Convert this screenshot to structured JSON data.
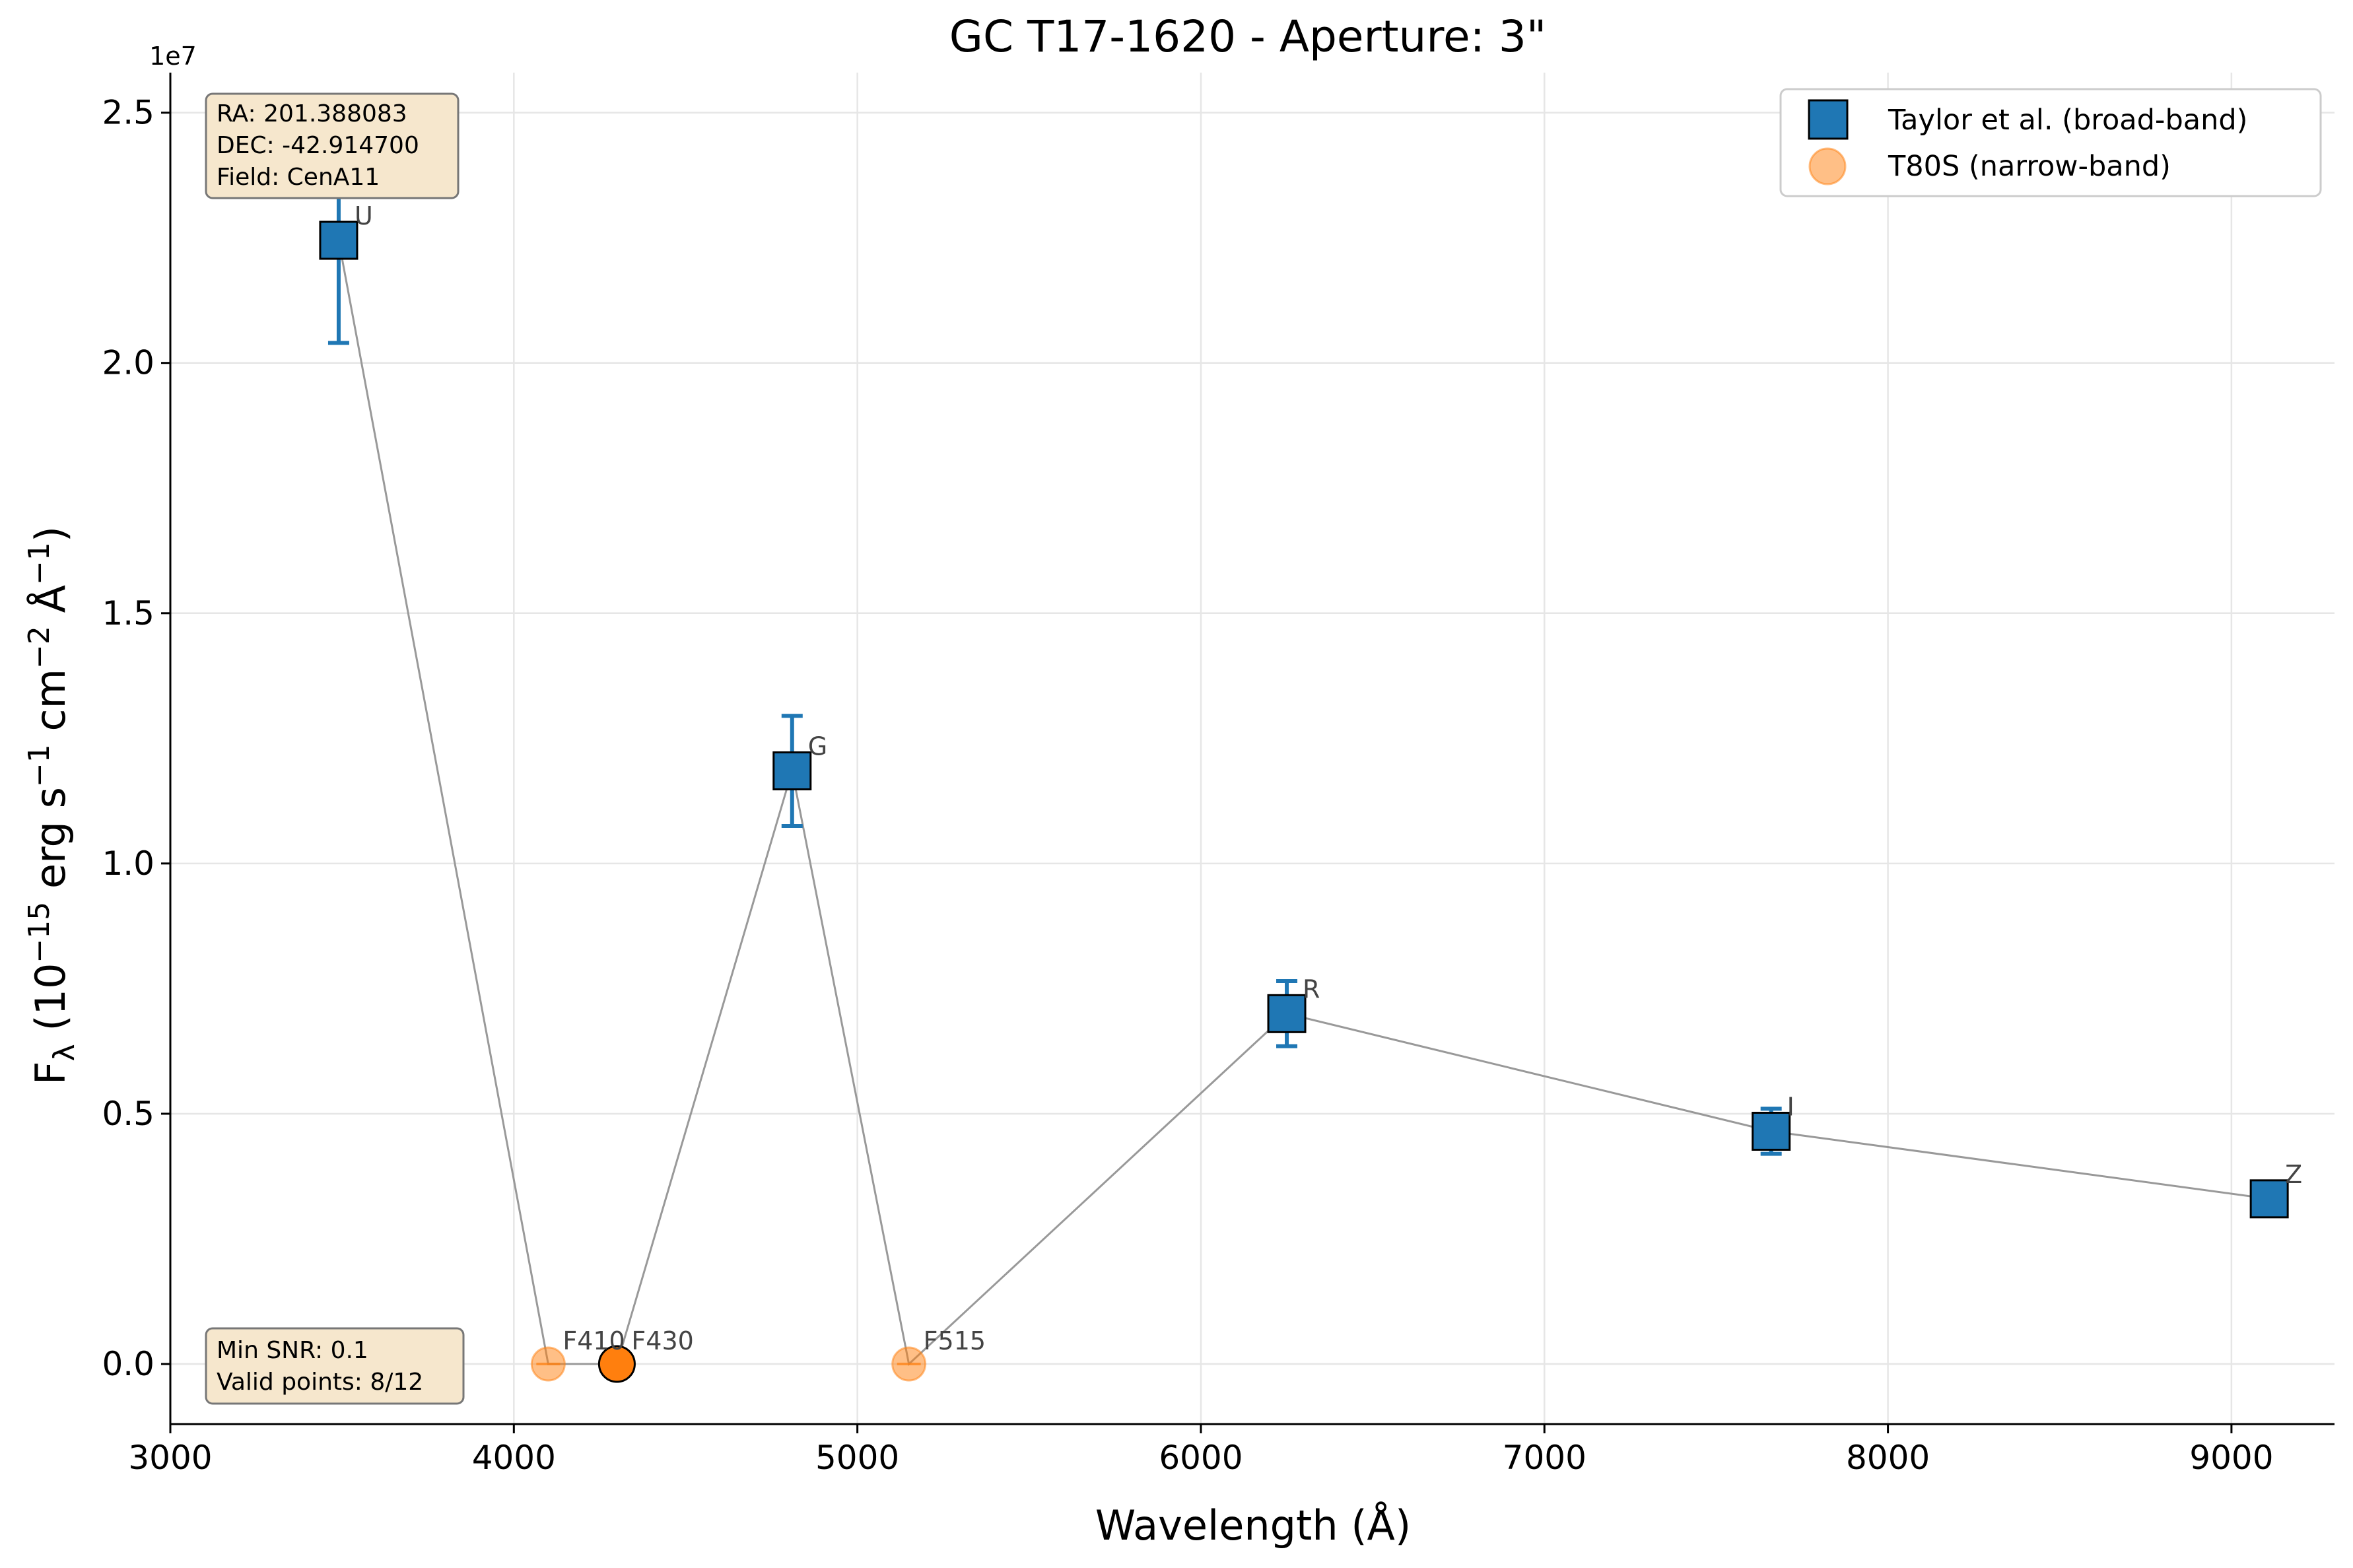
{
  "chart_data": {
    "type": "scatter",
    "title": "GC T17-1620 - Aperture: 3\"",
    "xlabel": "Wavelength (Å)",
    "ylabel_main": "F",
    "ylabel_sub": "λ",
    "ylabel_rest": " (10",
    "ylabel_exp1": "−15",
    "ylabel_part2": " erg s",
    "ylabel_exp2": "−1",
    "ylabel_part3": " cm",
    "ylabel_exp3": "−2",
    "ylabel_part4": " Å",
    "ylabel_exp4": "−1",
    "ylabel_end": ")",
    "y_offset_label": "1e7",
    "xlim": [
      3000,
      9300
    ],
    "ylim": [
      -0.12,
      2.58
    ],
    "xticks": [
      3000,
      4000,
      5000,
      6000,
      7000,
      8000,
      9000
    ],
    "yticks": [
      0.0,
      0.5,
      1.0,
      1.5,
      2.0,
      2.5
    ],
    "ytick_labels": [
      "0.0",
      "0.5",
      "1.0",
      "1.5",
      "2.0",
      "2.5"
    ],
    "grid": true,
    "legend_position": "top-right",
    "series": [
      {
        "name": "Taylor et al. (broad-band)",
        "marker": "square",
        "color": "#1f77b4",
        "points": [
          {
            "label": "U",
            "x": 3490,
            "y": 2.245,
            "err_low": 2.04,
            "err_high": 2.46
          },
          {
            "label": "G",
            "x": 4810,
            "y": 1.185,
            "err_low": 1.075,
            "err_high": 1.295
          },
          {
            "label": "R",
            "x": 6250,
            "y": 0.7,
            "err_low": 0.635,
            "err_high": 0.765
          },
          {
            "label": "I",
            "x": 7660,
            "y": 0.465,
            "err_low": 0.42,
            "err_high": 0.51
          },
          {
            "label": "Z",
            "x": 9110,
            "y": 0.33,
            "err_low": 0.33,
            "err_high": 0.33
          }
        ]
      },
      {
        "name": "T80S (narrow-band)",
        "marker": "circle",
        "color": "#ff7f0e",
        "points": [
          {
            "label": "F410",
            "x": 4100,
            "y": 0.0,
            "alpha": 0.5
          },
          {
            "label": "F430",
            "x": 4300,
            "y": 0.0,
            "alpha": 1.0
          },
          {
            "label": "F515",
            "x": 5150,
            "y": 0.0,
            "alpha": 0.5
          }
        ]
      }
    ],
    "connecting_line_order": [
      "U",
      "F410",
      "F430",
      "G",
      "F515",
      "R",
      "I",
      "Z"
    ],
    "info_box_top": [
      "RA: 201.388083",
      "DEC: -42.914700",
      "Field: CenA11"
    ],
    "info_box_bottom": [
      "Min SNR: 0.1",
      "Valid points: 8/12"
    ]
  }
}
